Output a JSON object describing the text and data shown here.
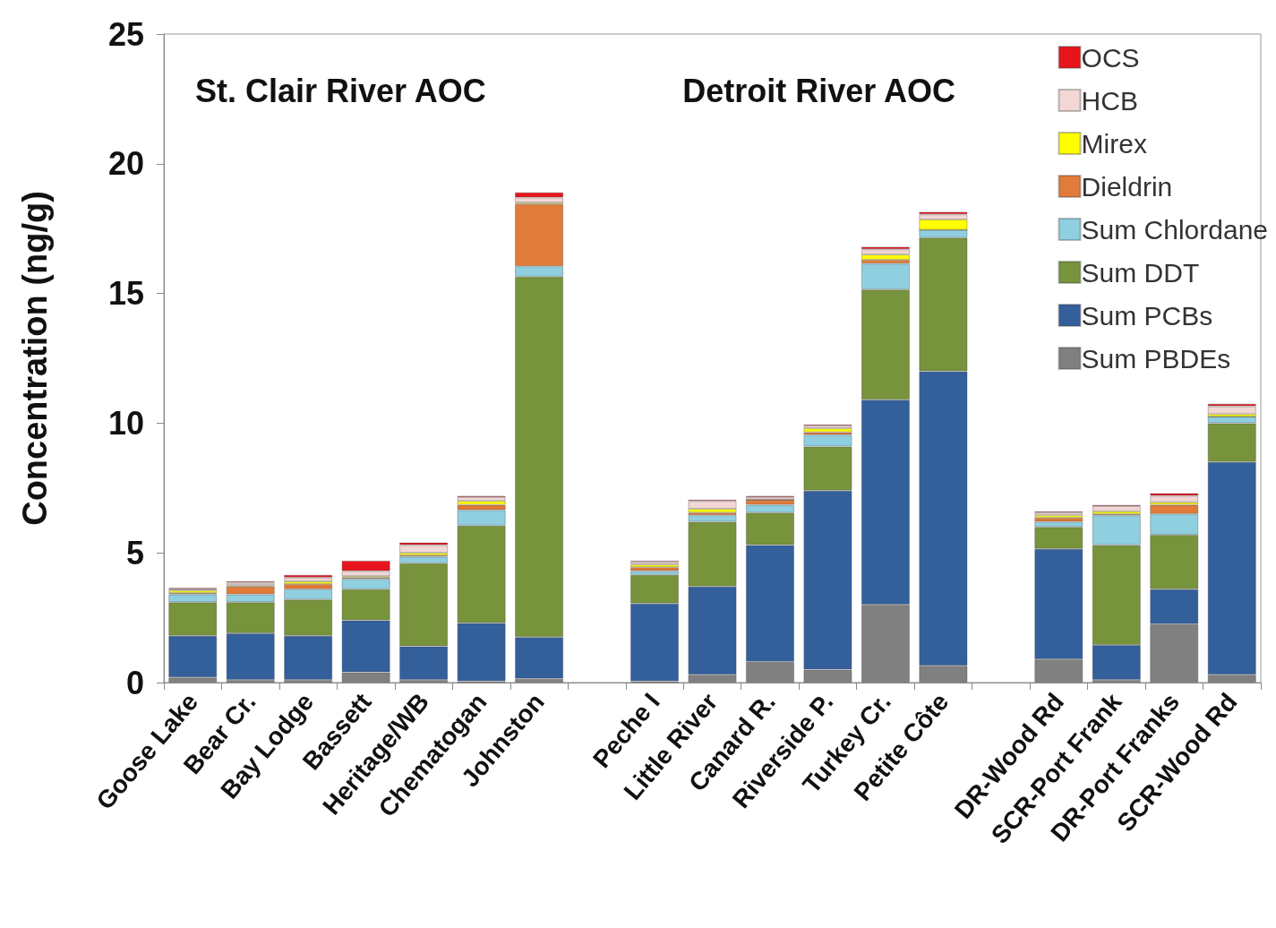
{
  "chart_data": {
    "type": "bar",
    "stacked": true,
    "ylabel": "Concentration (ng/g)",
    "annotations": [
      "St. Clair River AOC",
      "Detroit River AOC"
    ],
    "categories": [
      "Goose Lake",
      "Bear Cr.",
      "Bay Lodge",
      "Bassett",
      "Heritage/WB",
      "Chematogan",
      "Johnston",
      null,
      "Peche I",
      "Little River",
      "Canard R.",
      "Riverside P.",
      "Turkey Cr.",
      "Petite Côte",
      null,
      "DR-Wood Rd",
      "SCR-Port Frank",
      "DR-Port Franks",
      "SCR-Wood Rd"
    ],
    "series": [
      {
        "name": "Sum PBDEs",
        "color": "#808080",
        "values": [
          0.2,
          0.1,
          0.1,
          0.4,
          0.1,
          0.05,
          0.15,
          null,
          0.05,
          0.3,
          0.8,
          0.5,
          3.0,
          0.65,
          null,
          0.9,
          0.1,
          2.25,
          0.3
        ]
      },
      {
        "name": "Sum PCBs",
        "color": "#335f9b",
        "values": [
          1.6,
          1.8,
          1.7,
          2.0,
          1.3,
          2.25,
          1.6,
          null,
          3.0,
          3.4,
          4.5,
          6.9,
          7.9,
          11.35,
          null,
          4.25,
          1.35,
          1.35,
          8.2
        ]
      },
      {
        "name": "Sum DDT",
        "color": "#77933c",
        "values": [
          1.3,
          1.2,
          1.4,
          1.2,
          3.2,
          3.75,
          13.9,
          null,
          1.1,
          2.5,
          1.25,
          1.7,
          4.25,
          5.15,
          null,
          0.85,
          3.85,
          2.1,
          1.5
        ]
      },
      {
        "name": "Sum Chlordane",
        "color": "#8fcfe0",
        "values": [
          0.3,
          0.3,
          0.4,
          0.4,
          0.25,
          0.6,
          0.4,
          null,
          0.15,
          0.25,
          0.3,
          0.45,
          1.0,
          0.3,
          null,
          0.2,
          1.15,
          0.8,
          0.25
        ]
      },
      {
        "name": "Dieldrin",
        "color": "#e07b39",
        "values": [
          0.05,
          0.3,
          0.2,
          0.05,
          0.05,
          0.2,
          2.4,
          null,
          0.15,
          0.1,
          0.2,
          0.1,
          0.15,
          0,
          null,
          0.15,
          0.05,
          0.35,
          0
        ]
      },
      {
        "name": "Mirex",
        "color": "#ffff00",
        "values": [
          0.1,
          0.05,
          0.1,
          0.05,
          0.1,
          0.15,
          0.05,
          null,
          0.1,
          0.15,
          0,
          0.15,
          0.2,
          0.4,
          null,
          0.1,
          0.1,
          0.1,
          0.1
        ]
      },
      {
        "name": "HCB",
        "color": "#f2d7d5",
        "values": [
          0.05,
          0.1,
          0.15,
          0.2,
          0.3,
          0.15,
          0.2,
          null,
          0.1,
          0.3,
          0.1,
          0.1,
          0.2,
          0.2,
          null,
          0.1,
          0.2,
          0.25,
          0.3
        ]
      },
      {
        "name": "OCS",
        "color": "#e8141c",
        "values": [
          0.05,
          0.05,
          0.1,
          0.4,
          0.1,
          0.05,
          0.2,
          null,
          0.05,
          0.05,
          0.05,
          0.05,
          0.1,
          0.1,
          null,
          0.05,
          0.05,
          0.1,
          0.1
        ]
      }
    ],
    "ylim": [
      0,
      25
    ],
    "yticks": [
      0,
      5,
      10,
      15,
      20,
      25
    ],
    "grid": false,
    "legend": "top right"
  }
}
